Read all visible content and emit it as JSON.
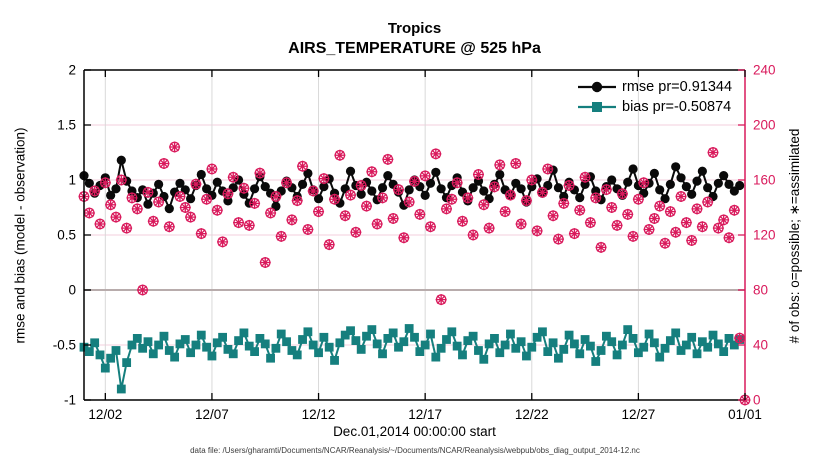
{
  "header": {
    "title_line1": "Tropics",
    "title_line2": "AIRS_TEMPERATURE @ 525 hPa"
  },
  "footer": "data file: /Users/gharamti/Documents/NCAR/Reanalysis/~/Documents/NCAR/Reanalysis/webpub/obs_diag_output_2014-12.nc",
  "legend": [
    {
      "label": "rmse pr=0.91344",
      "color": "#0a0a0a",
      "marker": "filled-circle"
    },
    {
      "label": "bias pr=-0.50874",
      "color": "#157F7E",
      "marker": "filled-square"
    }
  ],
  "colors": {
    "rmse": "#0a0a0a",
    "bias": "#157F7E",
    "obs": "#D91A5C",
    "grid_vertical": "#d9d9d9",
    "grid_horizontal": "#f3cfdd",
    "zero_line": "#b8acac",
    "axis": "#000000",
    "right_axis": "#D91A5C"
  },
  "chart_data": {
    "type": "line",
    "title": "Tropics",
    "subtitle": "AIRS_TEMPERATURE @ 525 hPa",
    "xlabel": "Dec.01,2014 00:00:00 start",
    "ylabel_left": "rmse and bias (model - observation)",
    "ylabel_right": "# of obs: o=possible; ∗=assimilated",
    "legend_position": "top-right, no box",
    "grid": "on",
    "ylim_left": [
      -1,
      2
    ],
    "ylim_right": [
      0,
      240
    ],
    "xlim_days": [
      0,
      31
    ],
    "x_ticks": [
      {
        "t": 1,
        "label": "12/02"
      },
      {
        "t": 6,
        "label": "12/07"
      },
      {
        "t": 11,
        "label": "12/12"
      },
      {
        "t": 16,
        "label": "12/17"
      },
      {
        "t": 21,
        "label": "12/22"
      },
      {
        "t": 26,
        "label": "12/27"
      },
      {
        "t": 31,
        "label": "01/01"
      }
    ],
    "yticks_left": [
      {
        "v": 2,
        "label": "2"
      },
      {
        "v": 1.5,
        "label": "1.5"
      },
      {
        "v": 1,
        "label": "1"
      },
      {
        "v": 0.5,
        "label": "0.5"
      },
      {
        "v": 0,
        "label": "0"
      },
      {
        "v": -0.5,
        "label": "-0.5"
      },
      {
        "v": -1,
        "label": "-1"
      }
    ],
    "yticks_right": [
      {
        "v": 240,
        "label": "240"
      },
      {
        "v": 200,
        "label": "200"
      },
      {
        "v": 160,
        "label": "160"
      },
      {
        "v": 120,
        "label": "120"
      },
      {
        "v": 80,
        "label": "80"
      },
      {
        "v": 40,
        "label": "40"
      },
      {
        "v": 0,
        "label": "0"
      }
    ],
    "t_days_start": 0,
    "t_days_step": 0.25,
    "series": [
      {
        "name": "rmse",
        "legend": "rmse pr=0.91344",
        "axis": "left",
        "marker": "filled-circle",
        "color": "#0a0a0a",
        "values": [
          1.04,
          0.97,
          0.88,
          0.95,
          1.02,
          0.86,
          0.92,
          1.18,
          0.99,
          0.9,
          0.84,
          0.91,
          0.78,
          0.88,
          0.96,
          0.85,
          0.74,
          0.89,
          0.97,
          0.91,
          0.83,
          0.95,
          1.05,
          0.92,
          0.86,
          0.98,
          0.9,
          0.81,
          0.93,
          1.0,
          0.87,
          0.79,
          0.92,
          1.03,
          0.94,
          0.88,
          0.76,
          0.9,
          0.99,
          0.93,
          0.85,
          0.96,
          1.06,
          0.91,
          0.83,
          0.94,
          1.01,
          0.88,
          0.79,
          0.92,
          1.08,
          0.95,
          0.87,
          0.98,
          0.9,
          0.82,
          0.93,
          1.04,
          0.96,
          0.89,
          0.77,
          0.91,
          1.0,
          0.94,
          0.86,
          0.97,
          1.07,
          0.92,
          0.84,
          0.95,
          1.02,
          0.89,
          0.81,
          0.93,
          0.99,
          0.9,
          0.83,
          0.96,
          1.05,
          0.91,
          0.86,
          0.97,
          0.92,
          0.8,
          0.94,
          1.01,
          0.88,
          0.95,
          1.09,
          0.93,
          0.85,
          0.98,
          0.91,
          0.84,
          0.96,
          1.03,
          0.9,
          0.82,
          0.94,
          1.0,
          0.92,
          0.86,
          0.98,
          1.1,
          0.95,
          0.88,
          0.97,
          1.06,
          0.91,
          0.83,
          0.96,
          1.12,
          1.02,
          0.94,
          0.87,
          0.99,
          1.08,
          0.93,
          0.85,
          0.97,
          1.04,
          0.96,
          0.9,
          0.95,
          null
        ]
      },
      {
        "name": "bias",
        "legend": "bias pr=-0.50874",
        "axis": "left",
        "marker": "filled-square",
        "color": "#157F7E",
        "values": [
          -0.52,
          -0.56,
          -0.48,
          -0.59,
          -0.71,
          -0.62,
          -0.55,
          -0.9,
          -0.66,
          -0.5,
          -0.44,
          -0.53,
          -0.47,
          -0.58,
          -0.5,
          -0.42,
          -0.55,
          -0.61,
          -0.49,
          -0.45,
          -0.57,
          -0.5,
          -0.41,
          -0.52,
          -0.6,
          -0.48,
          -0.43,
          -0.54,
          -0.58,
          -0.46,
          -0.39,
          -0.51,
          -0.56,
          -0.44,
          -0.49,
          -0.62,
          -0.53,
          -0.4,
          -0.47,
          -0.55,
          -0.59,
          -0.45,
          -0.38,
          -0.5,
          -0.57,
          -0.43,
          -0.52,
          -0.64,
          -0.48,
          -0.41,
          -0.37,
          -0.46,
          -0.54,
          -0.42,
          -0.36,
          -0.49,
          -0.58,
          -0.44,
          -0.39,
          -0.52,
          -0.47,
          -0.35,
          -0.43,
          -0.56,
          -0.5,
          -0.4,
          -0.61,
          -0.53,
          -0.45,
          -0.38,
          -0.51,
          -0.59,
          -0.46,
          -0.42,
          -0.55,
          -0.63,
          -0.49,
          -0.44,
          -0.57,
          -0.5,
          -0.4,
          -0.53,
          -0.47,
          -0.6,
          -0.52,
          -0.43,
          -0.38,
          -0.56,
          -0.48,
          -0.62,
          -0.54,
          -0.41,
          -0.49,
          -0.58,
          -0.45,
          -0.51,
          -0.65,
          -0.55,
          -0.42,
          -0.47,
          -0.59,
          -0.5,
          -0.36,
          -0.44,
          -0.57,
          -0.52,
          -0.4,
          -0.48,
          -0.61,
          -0.53,
          -0.46,
          -0.39,
          -0.55,
          -0.5,
          -0.43,
          -0.58,
          -0.47,
          -0.52,
          -0.41,
          -0.49,
          -0.56,
          -0.44,
          -0.5,
          -0.45,
          null
        ]
      },
      {
        "name": "obs_possible",
        "legend": "o=possible",
        "axis": "right",
        "marker": "open-circle",
        "color": "#D91A5C",
        "values": [
          148,
          136,
          152,
          128,
          158,
          142,
          133,
          160,
          125,
          147,
          139,
          80,
          151,
          130,
          144,
          172,
          126,
          184,
          148,
          140,
          133,
          157,
          121,
          146,
          168,
          138,
          115,
          150,
          162,
          129,
          154,
          127,
          143,
          165,
          100,
          136,
          148,
          119,
          158,
          131,
          145,
          170,
          124,
          152,
          137,
          161,
          113,
          146,
          178,
          134,
          149,
          122,
          156,
          141,
          166,
          128,
          147,
          175,
          132,
          153,
          118,
          144,
          159,
          135,
          163,
          126,
          179,
          73,
          139,
          146,
          158,
          130,
          147,
          120,
          164,
          142,
          125,
          155,
          171,
          137,
          149,
          172,
          128,
          145,
          160,
          123,
          151,
          168,
          134,
          117,
          143,
          156,
          121,
          138,
          162,
          129,
          147,
          111,
          153,
          140,
          127,
          150,
          135,
          119,
          146,
          158,
          124,
          132,
          141,
          114,
          137,
          122,
          148,
          129,
          116,
          139,
          126,
          144,
          180,
          125,
          131,
          118,
          138,
          45,
          0
        ]
      },
      {
        "name": "obs_assimilated",
        "legend": "∗=assimilated",
        "axis": "right",
        "marker": "asterisk",
        "color": "#D91A5C",
        "values_same_as": "obs_possible",
        "note": "assimilated counts overlap possible counts at every bin (⊗ glyphs)"
      }
    ]
  }
}
